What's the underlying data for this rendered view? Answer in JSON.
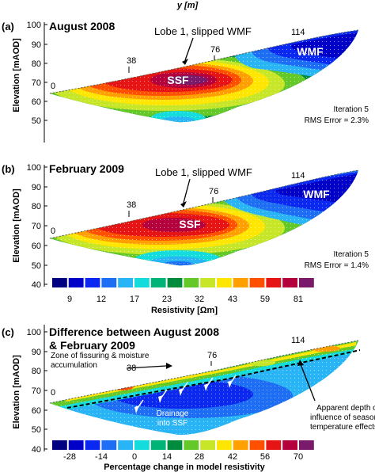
{
  "top_axis_label": "y [m]",
  "panels": [
    {
      "label": "(a)",
      "title": "August 2008",
      "ylabel": "Elevation [mAOD]",
      "yticks": [
        "100",
        "90",
        "80",
        "70",
        "60",
        "50"
      ],
      "distance_markers": [
        "0",
        "38",
        "76",
        "114"
      ],
      "annotation": "Lobe 1, slipped WMF",
      "zone_ssf": "SSF",
      "zone_wmf": "WMF",
      "iteration": "Iteration 5",
      "rms": "RMS Error = 2.3%"
    },
    {
      "label": "(b)",
      "title": "February 2009",
      "ylabel": "Elevation [mAOD]",
      "yticks": [
        "100",
        "90",
        "80",
        "70",
        "60",
        "50",
        "40"
      ],
      "distance_markers": [
        "0",
        "38",
        "76",
        "114"
      ],
      "annotation": "Lobe 1, slipped WMF",
      "zone_ssf": "SSF",
      "zone_wmf": "WMF",
      "iteration": "Iteration 5",
      "rms": "RMS Error = 1.4%"
    },
    {
      "label": "(c)",
      "title_line1": "Difference between August 2008",
      "title_line2": "& February 2009",
      "ylabel": "Elevation [mAOD]",
      "yticks": [
        "100",
        "90",
        "80",
        "70",
        "60",
        "50",
        "40"
      ],
      "distance_markers": [
        "0",
        "38",
        "76",
        "114"
      ],
      "note_fissuring_1": "Zone of fissuring & moisture",
      "note_fissuring_2": "accumulation",
      "note_drainage_1": "Drainage",
      "note_drainage_2": "into SSF",
      "note_depth_1": "Apparent depth of",
      "note_depth_2": "influence of seasonal",
      "note_depth_3": "temperature effects"
    }
  ],
  "colorbar_resistivity": {
    "tick_labels": [
      "9",
      "12",
      "17",
      "23",
      "32",
      "43",
      "59",
      "81"
    ],
    "label": "Resistivity [Ωm]",
    "colors": [
      "#000080",
      "#0000c8",
      "#0a28f0",
      "#1e6ef5",
      "#28b4f5",
      "#14dcdc",
      "#00b478",
      "#008c3c",
      "#64c828",
      "#c8e628",
      "#ffe600",
      "#ffa000",
      "#ff5000",
      "#e61414",
      "#b4003c",
      "#7a1a6a"
    ]
  },
  "colorbar_difference": {
    "tick_labels": [
      "-28",
      "-14",
      "0",
      "14",
      "28",
      "42",
      "56",
      "70"
    ],
    "label": "Percentage change in model resistivity",
    "colors": [
      "#000080",
      "#0000c8",
      "#0a28f0",
      "#1e6ef5",
      "#28b4f5",
      "#14dcdc",
      "#00b478",
      "#008c3c",
      "#64c828",
      "#c8e628",
      "#ffe600",
      "#ffa000",
      "#ff5000",
      "#e61414",
      "#b4003c",
      "#7a1a6a"
    ]
  }
}
